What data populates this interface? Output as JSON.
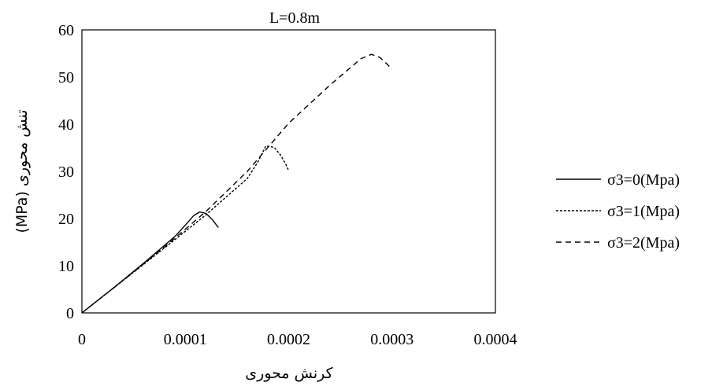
{
  "chart_data": {
    "type": "line",
    "title": "L=0.8m",
    "xlabel": "کرنش محوری",
    "ylabel": "تنش محوری  (MPa)",
    "xlim": [
      0,
      0.0004
    ],
    "ylim": [
      0,
      60
    ],
    "xticks": [
      "0",
      "0.0001",
      "0.0002",
      "0.0003",
      "0.0004"
    ],
    "yticks": [
      "0",
      "10",
      "20",
      "30",
      "40",
      "50",
      "60"
    ],
    "grid": false,
    "legend_position": "right",
    "series": [
      {
        "name": "σ3=0(Mpa)",
        "dash": "solid",
        "x": [
          0,
          3e-05,
          6e-05,
          9e-05,
          0.0001,
          0.000108,
          0.000114,
          0.00012,
          0.000126,
          0.000132
        ],
        "y": [
          0,
          5.2,
          10.6,
          16.2,
          18.6,
          20.6,
          21.4,
          21.1,
          19.8,
          18.1
        ]
      },
      {
        "name": "σ3=1(Mpa)",
        "dash": "dotted",
        "x": [
          0,
          4e-05,
          8e-05,
          0.00012,
          0.00016,
          0.00017,
          0.000178,
          0.000186,
          0.000192,
          0.000197,
          0.0002
        ],
        "y": [
          0,
          6.9,
          13.8,
          20.8,
          28.5,
          31.9,
          35.4,
          35.1,
          33.5,
          31.6,
          30.2
        ]
      },
      {
        "name": "σ3=2(Mpa)",
        "dash": "dashed",
        "x": [
          0,
          4e-05,
          8e-05,
          0.00012,
          0.00016,
          0.0002,
          0.00024,
          0.00027,
          0.00028,
          0.000288,
          0.000295,
          0.0003
        ],
        "y": [
          0,
          6.9,
          14.0,
          21.5,
          30.0,
          40.2,
          48.3,
          53.9,
          54.8,
          54.2,
          52.8,
          51.6
        ]
      }
    ]
  }
}
